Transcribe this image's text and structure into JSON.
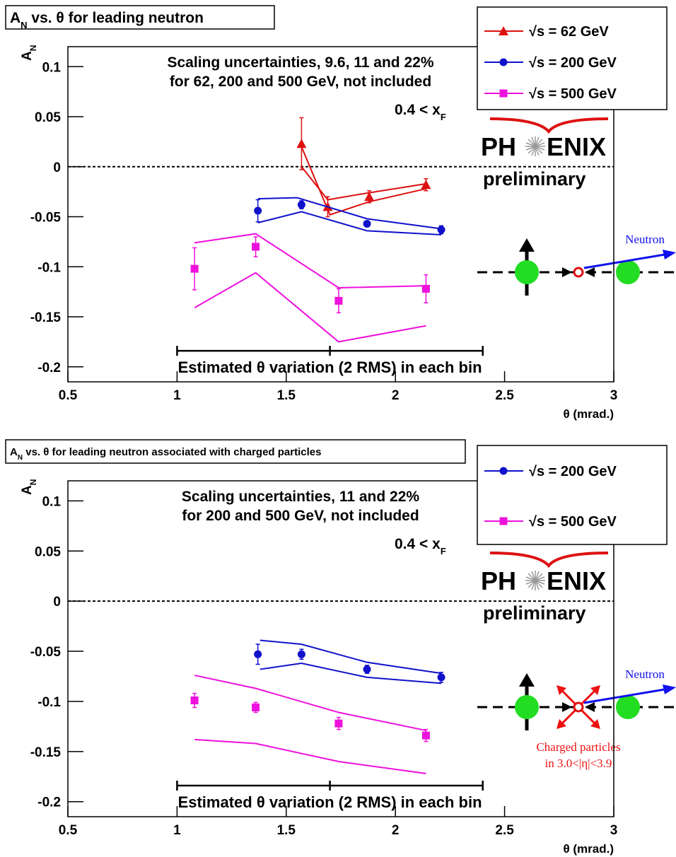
{
  "chart_data": [
    {
      "type": "scatter",
      "title_parts": [
        "A",
        "N",
        " vs. θ for leading neutron"
      ],
      "ylabel_parts": [
        "A",
        "N"
      ],
      "xlabel": "θ (mrad.)",
      "xlim": [
        0.5,
        3
      ],
      "xticks": [
        0.5,
        1,
        1.5,
        2,
        2.5,
        3
      ],
      "ylim": [
        -0.215,
        0.12
      ],
      "yticks": [
        0.1,
        0.05,
        0,
        -0.05,
        -0.1,
        -0.15,
        -0.2
      ],
      "zero_line": true,
      "scaling_note": [
        "Scaling uncertainties, 9.6, 11 and 22%",
        "for 62, 200 and 500 GeV, not included"
      ],
      "xf_note": [
        "0.4 < x",
        "F"
      ],
      "rms_note": "Estimated θ variation (2 RMS) in each bin",
      "rms_bar": {
        "x": [
          1,
          1.7,
          2.4
        ],
        "y": -0.184
      },
      "logo": {
        "left": "PH",
        "right": "ENIX",
        "sub": "preliminary"
      },
      "diagram": {
        "neutron": "Neutron"
      },
      "series": [
        {
          "name": "√s = 62 GeV",
          "color": "#dd1111",
          "marker": "triangle",
          "x": [
            1.57,
            1.69,
            1.88,
            2.14
          ],
          "values": [
            0.023,
            -0.04,
            -0.03,
            -0.018
          ],
          "errors": [
            0.026,
            0.01,
            0.006,
            0.006
          ],
          "band_upper": {
            "x": [
              1.57,
              1.69,
              1.88,
              2.14
            ],
            "values": [
              0.0,
              -0.033,
              -0.026,
              -0.017
            ]
          },
          "band_lower": {
            "x": [
              1.57,
              1.7,
              1.88,
              2.14
            ],
            "values": [
              0.02,
              -0.048,
              -0.035,
              -0.022
            ]
          }
        },
        {
          "name": "√s = 200 GeV",
          "color": "#1111cc",
          "marker": "circle",
          "x": [
            1.37,
            1.57,
            1.87,
            2.21
          ],
          "values": [
            -0.044,
            -0.038,
            -0.057,
            -0.063
          ],
          "errors": [
            0.011,
            0.004,
            0.003,
            0.004
          ],
          "band_upper": {
            "x": [
              1.37,
              1.55,
              1.87,
              2.21
            ],
            "values": [
              -0.032,
              -0.031,
              -0.052,
              -0.062
            ]
          },
          "band_lower": {
            "x": [
              1.37,
              1.57,
              1.87,
              2.21
            ],
            "values": [
              -0.056,
              -0.045,
              -0.064,
              -0.068
            ]
          }
        },
        {
          "name": "√s = 500 GeV",
          "color": "#ee11dd",
          "marker": "square",
          "x": [
            1.08,
            1.36,
            1.74,
            2.14
          ],
          "values": [
            -0.102,
            -0.08,
            -0.134,
            -0.122
          ],
          "errors": [
            0.021,
            0.01,
            0.012,
            0.014
          ],
          "band_upper": {
            "x": [
              1.08,
              1.36,
              1.74,
              2.14
            ],
            "values": [
              -0.076,
              -0.067,
              -0.121,
              -0.119
            ]
          },
          "band_lower": {
            "x": [
              1.08,
              1.36,
              1.74,
              2.14
            ],
            "values": [
              -0.141,
              -0.106,
              -0.175,
              -0.159
            ]
          }
        }
      ]
    },
    {
      "type": "scatter",
      "title_parts": [
        "A",
        "N",
        " vs. θ for leading neutron associated with charged particles"
      ],
      "ylabel_parts": [
        "A",
        "N"
      ],
      "xlabel": "θ (mrad.)",
      "xlim": [
        0.5,
        3
      ],
      "xticks": [
        0.5,
        1,
        1.5,
        2,
        2.5,
        3
      ],
      "ylim": [
        -0.215,
        0.12
      ],
      "yticks": [
        0.1,
        0.05,
        0,
        -0.05,
        -0.1,
        -0.15,
        -0.2
      ],
      "zero_line": true,
      "scaling_note": [
        "Scaling uncertainties, 11 and 22%",
        "for 200 and 500 GeV, not included"
      ],
      "xf_note": [
        "0.4 < x",
        "F"
      ],
      "rms_note": "Estimated θ variation (2 RMS) in each bin",
      "rms_bar": {
        "x": [
          1,
          1.7,
          2.4
        ],
        "y": -0.184
      },
      "logo": {
        "left": "PH",
        "right": "ENIX",
        "sub": "preliminary"
      },
      "diagram": {
        "neutron": "Neutron",
        "charged": [
          "Charged particles",
          "in 3.0<|η|<3.9"
        ]
      },
      "series": [
        {
          "name": "√s = 200 GeV",
          "color": "#1111cc",
          "marker": "circle",
          "x": [
            1.37,
            1.57,
            1.87,
            2.21
          ],
          "values": [
            -0.053,
            -0.053,
            -0.068,
            -0.076
          ],
          "errors": [
            0.01,
            0.005,
            0.004,
            0.005
          ],
          "band_upper": {
            "x": [
              1.38,
              1.57,
              1.87,
              2.21
            ],
            "values": [
              -0.039,
              -0.043,
              -0.061,
              -0.072
            ]
          },
          "band_lower": {
            "x": [
              1.38,
              1.57,
              1.87,
              2.21
            ],
            "values": [
              -0.068,
              -0.062,
              -0.076,
              -0.082
            ]
          }
        },
        {
          "name": "√s = 500 GeV",
          "color": "#ee11dd",
          "marker": "square",
          "x": [
            1.08,
            1.36,
            1.74,
            2.14
          ],
          "values": [
            -0.099,
            -0.106,
            -0.122,
            -0.134
          ],
          "errors": [
            0.007,
            0.005,
            0.006,
            0.006
          ],
          "band_upper": {
            "x": [
              1.08,
              1.36,
              1.74,
              2.14
            ],
            "values": [
              -0.074,
              -0.087,
              -0.111,
              -0.129
            ]
          },
          "band_lower": {
            "x": [
              1.08,
              1.36,
              1.74,
              2.14
            ],
            "values": [
              -0.138,
              -0.142,
              -0.16,
              -0.172
            ]
          }
        }
      ]
    }
  ]
}
